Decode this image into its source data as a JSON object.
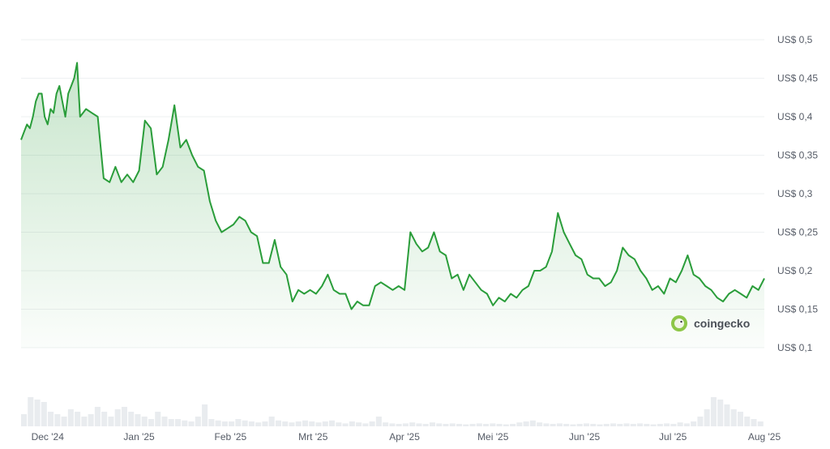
{
  "chart_data": {
    "type": "area",
    "title": "",
    "xlabel": "",
    "ylabel": "",
    "yticks": [
      "US$ 0,5",
      "US$ 0,45",
      "US$ 0,4",
      "US$ 0,35",
      "US$ 0,3",
      "US$ 0,25",
      "US$ 0,2",
      "US$ 0,15",
      "US$ 0,1"
    ],
    "ytick_values": [
      0.5,
      0.45,
      0.4,
      0.35,
      0.3,
      0.25,
      0.2,
      0.15,
      0.1
    ],
    "xticks": [
      "Dec '24",
      "Jan '25",
      "Feb '25",
      "Mrt '25",
      "Apr '25",
      "Mei '25",
      "Jun '25",
      "Jul '25",
      "Aug '25"
    ],
    "xtick_dates": [
      "2024-12-01",
      "2025-01-01",
      "2025-02-01",
      "2025-03-01",
      "2025-04-01",
      "2025-05-01",
      "2025-06-01",
      "2025-07-01",
      "2025-08-01"
    ],
    "x_start": "2024-11-22",
    "x_end": "2025-08-01",
    "ylim": [
      0.1,
      0.5
    ],
    "grid": true,
    "line_color": "#2a9d3a",
    "fill_color": "#2a9d3a",
    "series": [
      {
        "x": [
          "2024-11-22",
          "2024-11-23",
          "2024-11-24",
          "2024-11-25",
          "2024-11-26",
          "2024-11-27",
          "2024-11-28",
          "2024-11-29",
          "2024-11-30",
          "2024-12-01",
          "2024-12-02",
          "2024-12-03",
          "2024-12-04",
          "2024-12-05",
          "2024-12-06",
          "2024-12-07",
          "2024-12-08",
          "2024-12-09",
          "2024-12-10",
          "2024-12-11",
          "2024-12-12",
          "2024-12-14",
          "2024-12-16",
          "2024-12-18",
          "2024-12-20",
          "2024-12-22",
          "2024-12-24",
          "2024-12-26",
          "2024-12-28",
          "2024-12-30",
          "2025-01-01",
          "2025-01-03",
          "2025-01-05",
          "2025-01-07",
          "2025-01-09",
          "2025-01-11",
          "2025-01-13",
          "2025-01-15",
          "2025-01-17",
          "2025-01-19",
          "2025-01-21",
          "2025-01-23",
          "2025-01-25",
          "2025-01-27",
          "2025-01-29",
          "2025-01-31",
          "2025-02-02",
          "2025-02-04",
          "2025-02-06",
          "2025-02-08",
          "2025-02-10",
          "2025-02-12",
          "2025-02-14",
          "2025-02-16",
          "2025-02-18",
          "2025-02-20",
          "2025-02-22",
          "2025-02-24",
          "2025-02-26",
          "2025-02-28",
          "2025-03-02",
          "2025-03-04",
          "2025-03-06",
          "2025-03-08",
          "2025-03-10",
          "2025-03-12",
          "2025-03-14",
          "2025-03-16",
          "2025-03-18",
          "2025-03-20",
          "2025-03-22",
          "2025-03-24",
          "2025-03-26",
          "2025-03-28",
          "2025-03-30",
          "2025-04-01",
          "2025-04-03",
          "2025-04-05",
          "2025-04-07",
          "2025-04-09",
          "2025-04-11",
          "2025-04-13",
          "2025-04-15",
          "2025-04-17",
          "2025-04-19",
          "2025-04-21",
          "2025-04-23",
          "2025-04-25",
          "2025-04-27",
          "2025-04-29",
          "2025-05-01",
          "2025-05-03",
          "2025-05-05",
          "2025-05-07",
          "2025-05-09",
          "2025-05-11",
          "2025-05-13",
          "2025-05-15",
          "2025-05-17",
          "2025-05-19",
          "2025-05-21",
          "2025-05-23",
          "2025-05-25",
          "2025-05-27",
          "2025-05-29",
          "2025-05-31",
          "2025-06-02",
          "2025-06-04",
          "2025-06-06",
          "2025-06-08",
          "2025-06-10",
          "2025-06-12",
          "2025-06-14",
          "2025-06-16",
          "2025-06-18",
          "2025-06-20",
          "2025-06-22",
          "2025-06-24",
          "2025-06-26",
          "2025-06-28",
          "2025-06-30",
          "2025-07-02",
          "2025-07-04",
          "2025-07-06",
          "2025-07-08",
          "2025-07-10",
          "2025-07-12",
          "2025-07-14",
          "2025-07-16",
          "2025-07-18",
          "2025-07-20",
          "2025-07-22",
          "2025-07-24",
          "2025-07-26",
          "2025-07-28",
          "2025-07-30",
          "2025-08-01"
        ],
        "y": [
          0.37,
          0.38,
          0.39,
          0.385,
          0.4,
          0.42,
          0.43,
          0.43,
          0.4,
          0.39,
          0.41,
          0.405,
          0.43,
          0.44,
          0.42,
          0.4,
          0.43,
          0.44,
          0.45,
          0.47,
          0.4,
          0.41,
          0.405,
          0.4,
          0.32,
          0.315,
          0.335,
          0.315,
          0.325,
          0.315,
          0.33,
          0.395,
          0.385,
          0.325,
          0.335,
          0.37,
          0.415,
          0.36,
          0.37,
          0.35,
          0.335,
          0.33,
          0.29,
          0.265,
          0.25,
          0.255,
          0.26,
          0.27,
          0.265,
          0.25,
          0.245,
          0.21,
          0.21,
          0.24,
          0.205,
          0.195,
          0.16,
          0.175,
          0.17,
          0.175,
          0.17,
          0.18,
          0.195,
          0.175,
          0.17,
          0.17,
          0.15,
          0.16,
          0.155,
          0.155,
          0.18,
          0.185,
          0.18,
          0.175,
          0.18,
          0.175,
          0.25,
          0.235,
          0.225,
          0.23,
          0.25,
          0.225,
          0.22,
          0.19,
          0.195,
          0.175,
          0.195,
          0.185,
          0.175,
          0.17,
          0.155,
          0.165,
          0.16,
          0.17,
          0.165,
          0.175,
          0.18,
          0.2,
          0.2,
          0.205,
          0.225,
          0.275,
          0.25,
          0.235,
          0.22,
          0.215,
          0.195,
          0.19,
          0.19,
          0.18,
          0.185,
          0.2,
          0.23,
          0.22,
          0.215,
          0.2,
          0.19,
          0.175,
          0.18,
          0.17,
          0.19,
          0.185,
          0.2,
          0.22,
          0.195,
          0.19,
          0.18,
          0.175,
          0.165,
          0.16,
          0.17,
          0.175,
          0.17,
          0.165,
          0.18,
          0.175,
          0.19
        ]
      }
    ],
    "volume": {
      "note_values_relative": true,
      "values": [
        0.25,
        0.6,
        0.55,
        0.5,
        0.3,
        0.25,
        0.2,
        0.35,
        0.3,
        0.2,
        0.25,
        0.4,
        0.3,
        0.2,
        0.35,
        0.4,
        0.3,
        0.25,
        0.2,
        0.15,
        0.3,
        0.2,
        0.15,
        0.15,
        0.12,
        0.1,
        0.2,
        0.45,
        0.15,
        0.12,
        0.1,
        0.1,
        0.15,
        0.12,
        0.1,
        0.08,
        0.1,
        0.2,
        0.12,
        0.1,
        0.08,
        0.1,
        0.12,
        0.1,
        0.08,
        0.1,
        0.12,
        0.08,
        0.06,
        0.1,
        0.08,
        0.06,
        0.1,
        0.2,
        0.08,
        0.06,
        0.05,
        0.06,
        0.08,
        0.06,
        0.05,
        0.08,
        0.06,
        0.05,
        0.06,
        0.05,
        0.04,
        0.05,
        0.06,
        0.05,
        0.06,
        0.05,
        0.04,
        0.05,
        0.08,
        0.1,
        0.12,
        0.08,
        0.06,
        0.05,
        0.06,
        0.05,
        0.04,
        0.05,
        0.06,
        0.05,
        0.04,
        0.05,
        0.06,
        0.05,
        0.06,
        0.05,
        0.06,
        0.05,
        0.04,
        0.05,
        0.06,
        0.05,
        0.08,
        0.06,
        0.1,
        0.2,
        0.35,
        0.6,
        0.55,
        0.45,
        0.35,
        0.3,
        0.2,
        0.15,
        0.1
      ]
    }
  },
  "watermark": {
    "brand_text": "coingecko",
    "icon": "gecko-logo-icon"
  }
}
